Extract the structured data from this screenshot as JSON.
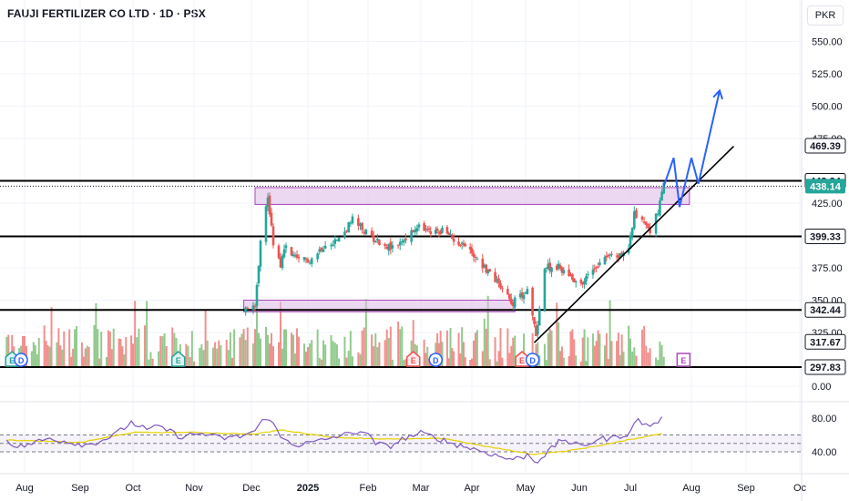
{
  "header": {
    "title": "FAUJI FERTILIZER CO LTD · 1D · PSX",
    "currency": "PKR"
  },
  "chart_data": [
    {
      "type": "candlestick",
      "title": "FAUJI FERTILIZER CO LTD · 1D · PSX",
      "y_axis_ticks": [
        "550.00",
        "525.00",
        "500.00",
        "475.00",
        "425.00",
        "375.00",
        "350.00",
        "325.00",
        "0.00"
      ],
      "x_axis_ticks": [
        "Aug",
        "Sep",
        "Oct",
        "Nov",
        "Dec",
        "2025",
        "Feb",
        "Mar",
        "Apr",
        "May",
        "Jun",
        "Jul",
        "Aug",
        "Sep",
        "Oc"
      ],
      "price_levels": [
        {
          "value": 469.39,
          "label": "469.39",
          "kind": "trendline-end"
        },
        {
          "value": 442.24,
          "label": "442.24",
          "kind": "horizontal-line"
        },
        {
          "value": 438.14,
          "label": "438.14",
          "kind": "last-price"
        },
        {
          "value": 399.33,
          "label": "399.33",
          "kind": "horizontal-line"
        },
        {
          "value": 342.44,
          "label": "342.44",
          "kind": "horizontal-line"
        },
        {
          "value": 317.67,
          "label": "317.67",
          "kind": "level"
        },
        {
          "value": 297.83,
          "label": "297.83",
          "kind": "horizontal-line"
        }
      ],
      "zones": [
        {
          "from_date": "2024-12-03",
          "to_date": "2025-07-31",
          "low": 424,
          "high": 437
        },
        {
          "from_date": "2024-11-27",
          "to_date": "2025-04-25",
          "low": 341,
          "high": 350
        }
      ],
      "trendline": {
        "from": [
          "2025-05-06",
          317
        ],
        "to": [
          "2025-08-25",
          469
        ]
      },
      "projection": [
        [
          "2025-07-18",
          438
        ],
        [
          "2025-07-23",
          460
        ],
        [
          "2025-07-26",
          422
        ],
        [
          "2025-08-01",
          460
        ],
        [
          "2025-08-05",
          440
        ],
        [
          "2025-08-17",
          512
        ]
      ],
      "ohlc_path": [
        [
          "2024-07-22",
          347
        ],
        [
          "2024-08-15",
          347
        ],
        [
          "2024-09-10",
          346
        ],
        [
          "2024-10-05",
          346
        ],
        [
          "2024-11-01",
          346
        ],
        [
          "2024-11-20",
          345
        ],
        [
          "2024-11-28",
          343
        ],
        [
          "2024-12-03",
          348
        ],
        [
          "2024-12-06",
          395
        ],
        [
          "2024-12-10",
          430
        ],
        [
          "2024-12-13",
          395
        ],
        [
          "2024-12-17",
          378
        ],
        [
          "2024-12-20",
          392
        ],
        [
          "2024-12-26",
          380
        ],
        [
          "2025-01-03",
          382
        ],
        [
          "2025-01-10",
          394
        ],
        [
          "2025-01-17",
          397
        ],
        [
          "2025-01-24",
          412
        ],
        [
          "2025-01-31",
          402
        ],
        [
          "2025-02-07",
          395
        ],
        [
          "2025-02-14",
          390
        ],
        [
          "2025-02-21",
          398
        ],
        [
          "2025-02-28",
          406
        ],
        [
          "2025-03-07",
          402
        ],
        [
          "2025-03-14",
          404
        ],
        [
          "2025-03-20",
          398
        ],
        [
          "2025-03-27",
          393
        ],
        [
          "2025-04-03",
          384
        ],
        [
          "2025-04-10",
          372
        ],
        [
          "2025-04-17",
          362
        ],
        [
          "2025-04-24",
          348
        ],
        [
          "2025-04-30",
          356
        ],
        [
          "2025-05-02",
          357
        ],
        [
          "2025-05-07",
          323
        ],
        [
          "2025-05-12",
          375
        ],
        [
          "2025-05-19",
          376
        ],
        [
          "2025-05-26",
          370
        ],
        [
          "2025-06-02",
          362
        ],
        [
          "2025-06-09",
          374
        ],
        [
          "2025-06-16",
          385
        ],
        [
          "2025-06-23",
          383
        ],
        [
          "2025-06-30",
          390
        ],
        [
          "2025-07-03",
          416
        ],
        [
          "2025-07-08",
          412
        ],
        [
          "2025-07-11",
          404
        ],
        [
          "2025-07-15",
          418
        ],
        [
          "2025-07-18",
          438
        ]
      ],
      "events": [
        {
          "letter": "E",
          "date": "2024-07-25",
          "kind": "earnings"
        },
        {
          "letter": "D",
          "date": "2024-07-30",
          "kind": "dividend"
        },
        {
          "letter": "E",
          "date": "2024-10-24",
          "kind": "earnings"
        },
        {
          "letter": "E",
          "date": "2025-02-25",
          "kind": "earnings-negative"
        },
        {
          "letter": "D",
          "date": "2025-03-10",
          "kind": "dividend"
        },
        {
          "letter": "E",
          "date": "2025-04-29",
          "kind": "earnings-negative"
        },
        {
          "letter": "D",
          "date": "2025-05-05",
          "kind": "dividend"
        },
        {
          "letter": "E",
          "date": "2025-07-28",
          "kind": "earnings-upcoming"
        }
      ],
      "colors": {
        "up": "#26a69a",
        "down": "#ef5350",
        "volume_up": "#7fc17a",
        "volume_down": "#ef7d7a",
        "zone": "#e1bee7",
        "zone_border": "#ab47bc",
        "projection": "#2962ff",
        "rsi": "#7e57c2",
        "rsi_ma": "#e6d100"
      }
    },
    {
      "type": "line",
      "name_hint": "RSI pane",
      "y_axis_ticks": [
        "80.00",
        "40.00"
      ],
      "ylim": [
        20,
        90
      ],
      "bands": [
        60,
        50,
        40
      ],
      "rsi": [
        [
          "2024-07-22",
          55
        ],
        [
          "2024-07-28",
          45
        ],
        [
          "2024-08-05",
          50
        ],
        [
          "2024-08-15",
          56
        ],
        [
          "2024-08-25",
          52
        ],
        [
          "2024-09-05",
          48
        ],
        [
          "2024-09-15",
          55
        ],
        [
          "2024-09-22",
          62
        ],
        [
          "2024-09-30",
          75
        ],
        [
          "2024-10-08",
          66
        ],
        [
          "2024-10-15",
          70
        ],
        [
          "2024-10-25",
          58
        ],
        [
          "2024-11-05",
          62
        ],
        [
          "2024-11-15",
          56
        ],
        [
          "2024-11-25",
          58
        ],
        [
          "2024-12-03",
          65
        ],
        [
          "2024-12-10",
          84
        ],
        [
          "2024-12-17",
          57
        ],
        [
          "2024-12-26",
          48
        ],
        [
          "2025-01-06",
          52
        ],
        [
          "2025-01-15",
          58
        ],
        [
          "2025-01-22",
          61
        ],
        [
          "2025-01-29",
          66
        ],
        [
          "2025-02-05",
          50
        ],
        [
          "2025-02-12",
          46
        ],
        [
          "2025-02-20",
          56
        ],
        [
          "2025-03-01",
          62
        ],
        [
          "2025-03-10",
          57
        ],
        [
          "2025-03-20",
          50
        ],
        [
          "2025-04-01",
          44
        ],
        [
          "2025-04-10",
          39
        ],
        [
          "2025-04-20",
          32
        ],
        [
          "2025-04-28",
          32
        ],
        [
          "2025-05-02",
          37
        ],
        [
          "2025-05-07",
          28
        ],
        [
          "2025-05-14",
          40
        ],
        [
          "2025-05-22",
          55
        ],
        [
          "2025-06-02",
          46
        ],
        [
          "2025-06-12",
          55
        ],
        [
          "2025-06-20",
          56
        ],
        [
          "2025-06-30",
          62
        ],
        [
          "2025-07-05",
          78
        ],
        [
          "2025-07-10",
          70
        ],
        [
          "2025-07-18",
          80
        ]
      ],
      "rsi_ma": [
        [
          "2024-07-22",
          54
        ],
        [
          "2024-09-01",
          51
        ],
        [
          "2024-10-01",
          63
        ],
        [
          "2024-11-01",
          63
        ],
        [
          "2024-12-03",
          61
        ],
        [
          "2024-12-17",
          66
        ],
        [
          "2025-01-15",
          57
        ],
        [
          "2025-02-15",
          55
        ],
        [
          "2025-03-15",
          56
        ],
        [
          "2025-04-10",
          46
        ],
        [
          "2025-05-05",
          37
        ],
        [
          "2025-05-25",
          41
        ],
        [
          "2025-06-20",
          50
        ],
        [
          "2025-07-18",
          62
        ]
      ]
    }
  ]
}
